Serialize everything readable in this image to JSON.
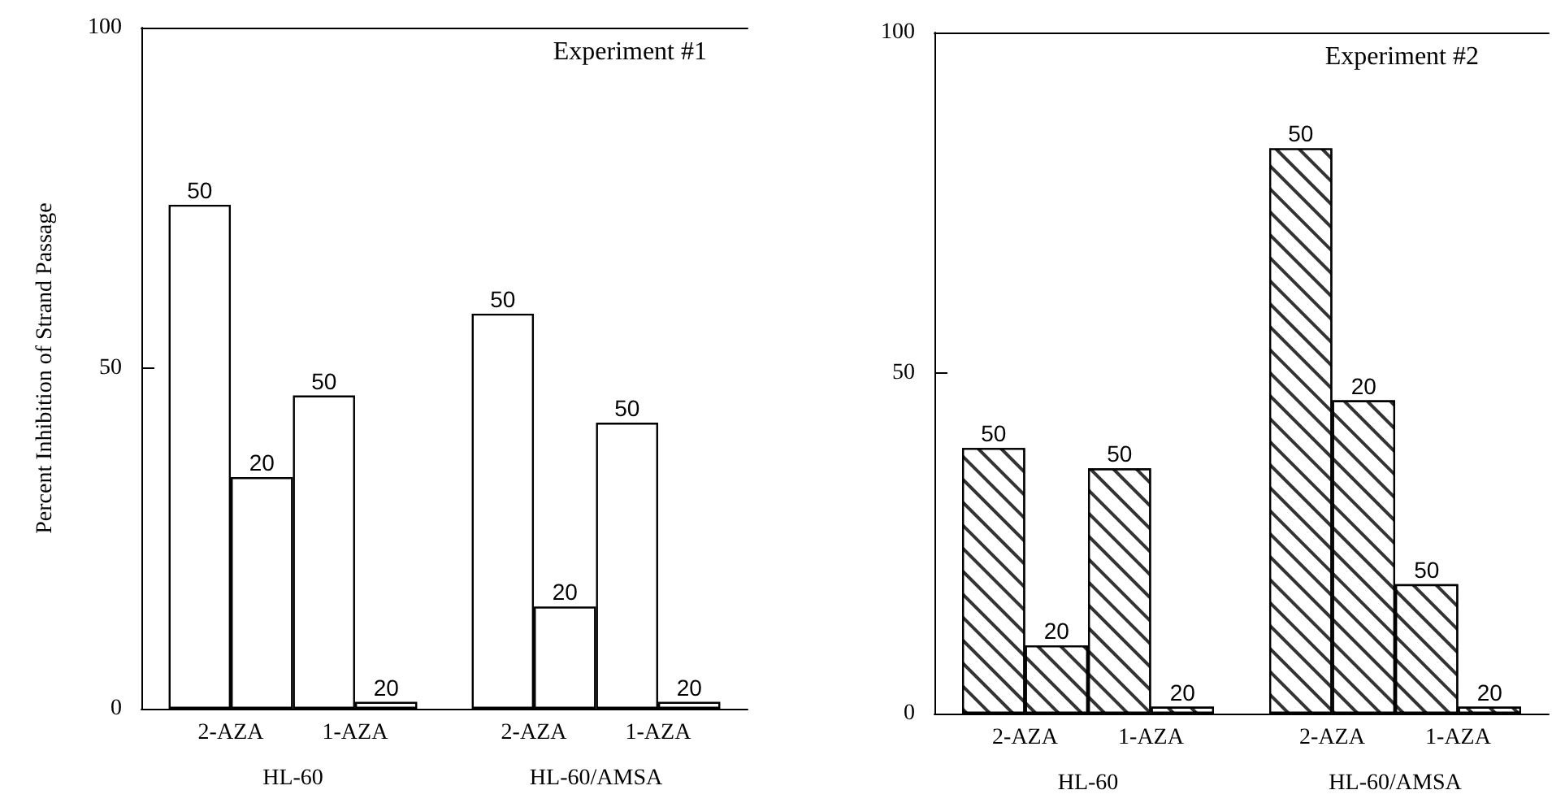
{
  "chart_data": [
    {
      "type": "bar",
      "title": "Experiment #1",
      "ylabel": "Percent Inhibition of Strand Passage",
      "categories": [
        "HL-60",
        "HL-60/AMSA"
      ],
      "series": [
        {
          "color": "#ffffff",
          "values": [
            74,
            58
          ]
        },
        {
          "color": "#ffffff",
          "values": [
            34,
            15
          ]
        },
        {
          "color": "#ffffff",
          "values": [
            46,
            42
          ]
        },
        {
          "color": "#ffffff",
          "values": [
            1,
            1
          ]
        }
      ],
      "annotations": [
        "2-AZA",
        "1-AZA",
        "2-AZA",
        "1-AZA",
        "50",
        "20",
        "50",
        "20",
        "50",
        "20",
        "50",
        "20"
      ],
      "ylim": [
        0,
        100
      ],
      "yticks": [
        0,
        50,
        100
      ],
      "grid": false
    },
    {
      "type": "bar",
      "title": "Experiment #2",
      "categories": [
        "HL-60",
        "HL-60/AMSA"
      ],
      "series": [
        {
          "color": "#333333",
          "values": [
            39,
            83
          ]
        },
        {
          "color": "#333333",
          "values": [
            10,
            46
          ]
        },
        {
          "color": "#333333",
          "values": [
            36,
            19
          ]
        },
        {
          "color": "#333333",
          "values": [
            1,
            1
          ]
        }
      ],
      "annotations": [
        "2-AZA",
        "1-AZA",
        "2-AZA",
        "1-AZA",
        "50",
        "20",
        "50",
        "20",
        "50",
        "20",
        "50",
        "20"
      ],
      "ylim": [
        0,
        100
      ],
      "yticks": [
        0,
        50,
        100
      ],
      "grid": false
    }
  ]
}
